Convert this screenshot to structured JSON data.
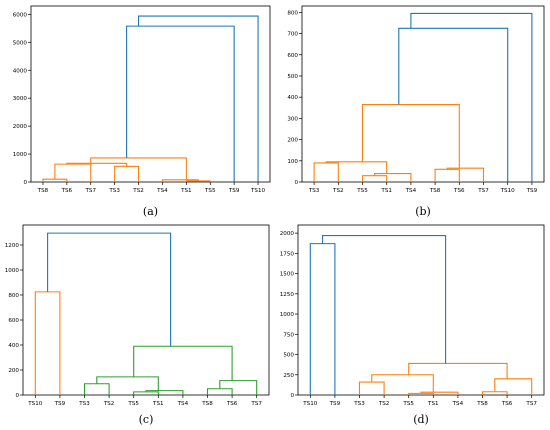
{
  "colors": {
    "orange": "#ff7f0e",
    "blue": "#1f77b4",
    "green": "#2ca02c"
  },
  "chart_data": [
    {
      "type": "dendrogram",
      "caption": "(a)",
      "ylim": [
        0,
        6300
      ],
      "yticks": [
        0,
        1000,
        2000,
        3000,
        4000,
        5000,
        6000
      ],
      "leaves": [
        "TS8",
        "TS6",
        "TS7",
        "TS3",
        "TS2",
        "TS4",
        "TS1",
        "TS5",
        "TS9",
        "TS10"
      ],
      "links": [
        {
          "a": [
            "TS8"
          ],
          "b": [
            "TS6"
          ],
          "h": 100,
          "color": "orange",
          "ya": 0,
          "yb": 0
        },
        {
          "a": [
            "TS8",
            "TS6"
          ],
          "b": [
            "TS7"
          ],
          "h": 640,
          "color": "orange",
          "ya": 100,
          "yb": 0
        },
        {
          "a": [
            "TS3"
          ],
          "b": [
            "TS2"
          ],
          "h": 560,
          "color": "orange",
          "ya": 0,
          "yb": 0
        },
        {
          "a": [
            "TS8",
            "TS6",
            "TS7"
          ],
          "b": [
            "TS3",
            "TS2"
          ],
          "h": 670,
          "color": "orange",
          "ya": 640,
          "yb": 560
        },
        {
          "a": [
            "TS1"
          ],
          "b": [
            "TS5"
          ],
          "h": 40,
          "color": "orange",
          "ya": 0,
          "yb": 0
        },
        {
          "a": [
            "TS4"
          ],
          "b": [
            "TS1",
            "TS5"
          ],
          "h": 80,
          "color": "orange",
          "ya": 0,
          "yb": 40
        },
        {
          "a": [
            "TS8",
            "TS6",
            "TS7",
            "TS3",
            "TS2"
          ],
          "b": [
            "TS4",
            "TS1",
            "TS5"
          ],
          "h": 860,
          "color": "orange",
          "ya": 670,
          "yb": 80
        },
        {
          "a": [
            "TS8",
            "TS6",
            "TS7",
            "TS3",
            "TS2",
            "TS4",
            "TS1",
            "TS5"
          ],
          "b": [
            "TS9"
          ],
          "h": 5580,
          "color": "blue",
          "ya": 860,
          "yb": 0
        },
        {
          "a": [
            "TS8",
            "TS6",
            "TS7",
            "TS3",
            "TS2",
            "TS4",
            "TS1",
            "TS5",
            "TS9"
          ],
          "b": [
            "TS10"
          ],
          "h": 5940,
          "color": "blue",
          "ya": 5580,
          "yb": 0
        }
      ]
    },
    {
      "type": "dendrogram",
      "caption": "(b)",
      "ylim": [
        0,
        830
      ],
      "yticks": [
        0,
        100,
        200,
        300,
        400,
        500,
        600,
        700,
        800
      ],
      "leaves": [
        "TS3",
        "TS2",
        "TS5",
        "TS1",
        "TS4",
        "TS8",
        "TS6",
        "TS7",
        "TS10",
        "TS9"
      ],
      "links": [
        {
          "a": [
            "TS3"
          ],
          "b": [
            "TS2"
          ],
          "h": 90,
          "color": "orange",
          "ya": 0,
          "yb": 0
        },
        {
          "a": [
            "TS5"
          ],
          "b": [
            "TS1"
          ],
          "h": 30,
          "color": "orange",
          "ya": 0,
          "yb": 0
        },
        {
          "a": [
            "TS5",
            "TS1"
          ],
          "b": [
            "TS4"
          ],
          "h": 40,
          "color": "orange",
          "ya": 30,
          "yb": 0
        },
        {
          "a": [
            "TS3",
            "TS2"
          ],
          "b": [
            "TS5",
            "TS1",
            "TS4"
          ],
          "h": 95,
          "color": "orange",
          "ya": 90,
          "yb": 40
        },
        {
          "a": [
            "TS8"
          ],
          "b": [
            "TS6"
          ],
          "h": 60,
          "color": "orange",
          "ya": 0,
          "yb": 0
        },
        {
          "a": [
            "TS8",
            "TS6"
          ],
          "b": [
            "TS7"
          ],
          "h": 65,
          "color": "orange",
          "ya": 60,
          "yb": 0
        },
        {
          "a": [
            "TS3",
            "TS2",
            "TS5",
            "TS1",
            "TS4"
          ],
          "b": [
            "TS8",
            "TS6",
            "TS7"
          ],
          "h": 365,
          "color": "orange",
          "ya": 95,
          "yb": 65
        },
        {
          "a": [
            "TS3",
            "TS2",
            "TS5",
            "TS1",
            "TS4",
            "TS8",
            "TS6",
            "TS7"
          ],
          "b": [
            "TS10"
          ],
          "h": 725,
          "color": "blue",
          "ya": 365,
          "yb": 0
        },
        {
          "a": [
            "TS3",
            "TS2",
            "TS5",
            "TS1",
            "TS4",
            "TS8",
            "TS6",
            "TS7",
            "TS10"
          ],
          "b": [
            "TS9"
          ],
          "h": 795,
          "color": "blue",
          "ya": 725,
          "yb": 0
        }
      ]
    },
    {
      "type": "dendrogram",
      "caption": "(c)",
      "ylim": [
        0,
        1360
      ],
      "yticks": [
        0,
        200,
        400,
        600,
        800,
        1000,
        1200
      ],
      "leaves": [
        "TS10",
        "TS9",
        "TS3",
        "TS2",
        "TS5",
        "TS1",
        "TS4",
        "TS8",
        "TS6",
        "TS7"
      ],
      "links": [
        {
          "a": [
            "TS10"
          ],
          "b": [
            "TS9"
          ],
          "h": 825,
          "color": "orange",
          "ya": 0,
          "yb": 0
        },
        {
          "a": [
            "TS3"
          ],
          "b": [
            "TS2"
          ],
          "h": 90,
          "color": "green",
          "ya": 0,
          "yb": 0
        },
        {
          "a": [
            "TS5"
          ],
          "b": [
            "TS1"
          ],
          "h": 25,
          "color": "green",
          "ya": 0,
          "yb": 0
        },
        {
          "a": [
            "TS5",
            "TS1"
          ],
          "b": [
            "TS4"
          ],
          "h": 35,
          "color": "green",
          "ya": 25,
          "yb": 0
        },
        {
          "a": [
            "TS3",
            "TS2"
          ],
          "b": [
            "TS5",
            "TS1",
            "TS4"
          ],
          "h": 145,
          "color": "green",
          "ya": 90,
          "yb": 35
        },
        {
          "a": [
            "TS8"
          ],
          "b": [
            "TS6"
          ],
          "h": 50,
          "color": "green",
          "ya": 0,
          "yb": 0
        },
        {
          "a": [
            "TS8",
            "TS6"
          ],
          "b": [
            "TS7"
          ],
          "h": 115,
          "color": "green",
          "ya": 50,
          "yb": 0
        },
        {
          "a": [
            "TS3",
            "TS2",
            "TS5",
            "TS1",
            "TS4"
          ],
          "b": [
            "TS8",
            "TS6",
            "TS7"
          ],
          "h": 390,
          "color": "green",
          "ya": 145,
          "yb": 115
        },
        {
          "a": [
            "TS10",
            "TS9"
          ],
          "b": [
            "TS3",
            "TS2",
            "TS5",
            "TS1",
            "TS4",
            "TS8",
            "TS6",
            "TS7"
          ],
          "h": 1295,
          "color": "blue",
          "ya": 825,
          "yb": 390
        }
      ]
    },
    {
      "type": "dendrogram",
      "caption": "(d)",
      "ylim": [
        0,
        2100
      ],
      "yticks": [
        0,
        250,
        500,
        750,
        1000,
        1250,
        1500,
        1750,
        2000
      ],
      "leaves": [
        "TS10",
        "TS9",
        "TS3",
        "TS2",
        "TS5",
        "TS1",
        "TS4",
        "TS8",
        "TS6",
        "TS7"
      ],
      "links": [
        {
          "a": [
            "TS10"
          ],
          "b": [
            "TS9"
          ],
          "h": 1870,
          "color": "blue",
          "ya": 0,
          "yb": 0
        },
        {
          "a": [
            "TS3"
          ],
          "b": [
            "TS2"
          ],
          "h": 160,
          "color": "orange",
          "ya": 0,
          "yb": 0
        },
        {
          "a": [
            "TS5"
          ],
          "b": [
            "TS1"
          ],
          "h": 20,
          "color": "orange",
          "ya": 0,
          "yb": 0
        },
        {
          "a": [
            "TS5",
            "TS1"
          ],
          "b": [
            "TS4"
          ],
          "h": 35,
          "color": "orange",
          "ya": 20,
          "yb": 0
        },
        {
          "a": [
            "TS3",
            "TS2"
          ],
          "b": [
            "TS5",
            "TS1",
            "TS4"
          ],
          "h": 250,
          "color": "orange",
          "ya": 160,
          "yb": 35
        },
        {
          "a": [
            "TS8"
          ],
          "b": [
            "TS6"
          ],
          "h": 40,
          "color": "orange",
          "ya": 0,
          "yb": 0
        },
        {
          "a": [
            "TS8",
            "TS6"
          ],
          "b": [
            "TS7"
          ],
          "h": 200,
          "color": "orange",
          "ya": 40,
          "yb": 0
        },
        {
          "a": [
            "TS3",
            "TS2",
            "TS5",
            "TS1",
            "TS4"
          ],
          "b": [
            "TS8",
            "TS6",
            "TS7"
          ],
          "h": 390,
          "color": "orange",
          "ya": 250,
          "yb": 200
        },
        {
          "a": [
            "TS10",
            "TS9"
          ],
          "b": [
            "TS3",
            "TS2",
            "TS5",
            "TS1",
            "TS4",
            "TS8",
            "TS6",
            "TS7"
          ],
          "h": 1970,
          "color": "blue",
          "ya": 1870,
          "yb": 390
        }
      ]
    }
  ]
}
